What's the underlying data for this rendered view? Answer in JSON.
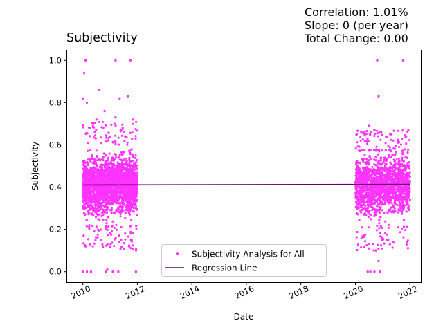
{
  "stats": {
    "correlation": "Correlation: 1.01%",
    "slope": "Slope: 0 (per year)",
    "total_change": "Total Change: 0.00"
  },
  "chart_data": {
    "type": "scatter",
    "title": "Subjectivity",
    "xlabel": "Date",
    "ylabel": "Subjectivity",
    "xlim": [
      2009.4,
      2022.4
    ],
    "ylim": [
      -0.05,
      1.05
    ],
    "x_ticks": [
      "2010",
      "2012",
      "2014",
      "2016",
      "2018",
      "2020",
      "2022"
    ],
    "y_ticks": [
      "0.0",
      "0.2",
      "0.4",
      "0.6",
      "0.8",
      "1.0"
    ],
    "grid": false,
    "legend_position": "lower center",
    "colors": {
      "scatter": "#ff33ff",
      "regression": "#660066"
    },
    "series": [
      {
        "name": "Subjectivity Analysis for All",
        "kind": "points",
        "clusters": [
          {
            "x_range": [
              2010.0,
              2012.0
            ],
            "y_core": [
              0.25,
              0.6
            ],
            "y_center": 0.41
          },
          {
            "x_range": [
              2020.0,
              2022.0
            ],
            "y_core": [
              0.25,
              0.56
            ],
            "y_center": 0.41
          }
        ],
        "notable_points": [
          {
            "x": 2010.1,
            "y": 1.0
          },
          {
            "x": 2011.2,
            "y": 1.0
          },
          {
            "x": 2011.75,
            "y": 1.0
          },
          {
            "x": 2010.05,
            "y": 0.94
          },
          {
            "x": 2010.6,
            "y": 0.86
          },
          {
            "x": 2011.65,
            "y": 0.83
          },
          {
            "x": 2010.0,
            "y": 0.82
          },
          {
            "x": 2011.35,
            "y": 0.82
          },
          {
            "x": 2010.15,
            "y": 0.8
          },
          {
            "x": 2010.8,
            "y": 0.76
          },
          {
            "x": 2011.2,
            "y": 0.73
          },
          {
            "x": 2010.5,
            "y": 0.72
          },
          {
            "x": 2011.85,
            "y": 0.72
          },
          {
            "x": 2010.0,
            "y": 0.0
          },
          {
            "x": 2010.15,
            "y": 0.0
          },
          {
            "x": 2010.3,
            "y": 0.0
          },
          {
            "x": 2010.85,
            "y": 0.0
          },
          {
            "x": 2011.1,
            "y": 0.0
          },
          {
            "x": 2011.3,
            "y": 0.0
          },
          {
            "x": 2011.95,
            "y": 0.0
          },
          {
            "x": 2010.9,
            "y": 0.01
          },
          {
            "x": 2010.1,
            "y": 0.12
          },
          {
            "x": 2011.4,
            "y": 0.15
          },
          {
            "x": 2011.7,
            "y": 0.12
          },
          {
            "x": 2020.8,
            "y": 1.0
          },
          {
            "x": 2021.75,
            "y": 1.0
          },
          {
            "x": 2020.85,
            "y": 0.83
          },
          {
            "x": 2020.5,
            "y": 0.69
          },
          {
            "x": 2020.7,
            "y": 0.67
          },
          {
            "x": 2021.3,
            "y": 0.65
          },
          {
            "x": 2020.45,
            "y": 0.0
          },
          {
            "x": 2020.55,
            "y": 0.0
          },
          {
            "x": 2020.7,
            "y": 0.0
          },
          {
            "x": 2020.9,
            "y": 0.0
          },
          {
            "x": 2020.85,
            "y": 0.05
          },
          {
            "x": 2020.75,
            "y": 0.1
          },
          {
            "x": 2021.0,
            "y": 0.15
          },
          {
            "x": 2021.2,
            "y": 0.15
          }
        ]
      },
      {
        "name": "Regression Line",
        "kind": "line",
        "x": [
          2010.0,
          2022.0
        ],
        "y": [
          0.41,
          0.413
        ]
      }
    ]
  }
}
